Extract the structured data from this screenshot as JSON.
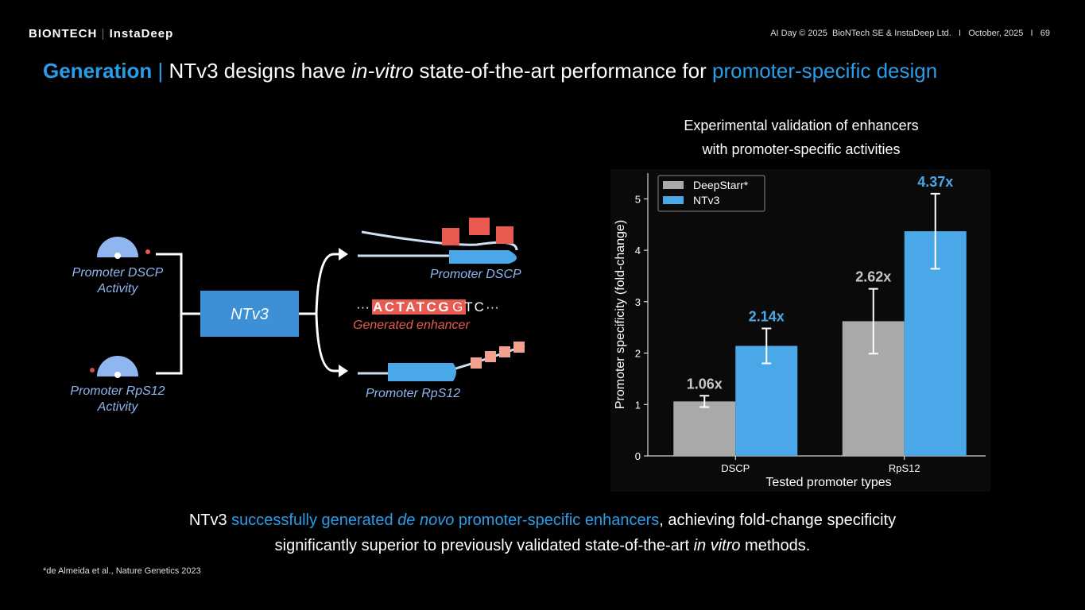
{
  "header": {
    "brand": "BIONTECH",
    "partner": "InstaDeep",
    "event": "AI Day © 2025  BioNTech SE & InstaDeep Ltd.",
    "separator": "I",
    "date": "October, 2025",
    "page": "69"
  },
  "title": {
    "section": "Generation",
    "text_1": "NTv3 designs have ",
    "emphasis": "in-vitro",
    "text_2": " state-of-the-art performance for ",
    "highlight": "promoter-specific design"
  },
  "diagram": {
    "input_1": "Promoter DSCP Activity",
    "input_2": "Promoter RpS12 Activity",
    "model": "NTv3",
    "output_1": "Promoter DSCP",
    "output_2": "Promoter RpS12",
    "sequence_prefix": "···",
    "sequence_highlight": "ACTATCG",
    "sequence_rest": "GTC",
    "sequence_suffix": "···",
    "sequence_label": "Generated enhancer"
  },
  "chart_data": {
    "type": "bar",
    "subtitle_1": "Experimental validation of enhancers",
    "subtitle_2": "with promoter-specific activities",
    "categories": [
      "DSCP",
      "RpS12"
    ],
    "series": [
      {
        "name": "DeepStarr*",
        "color": "#a9a9a9",
        "label_color": "#c8c8c8",
        "values": [
          1.06,
          2.62
        ],
        "value_labels": [
          "1.06x",
          "2.62x"
        ],
        "errors": [
          0.11,
          0.63
        ]
      },
      {
        "name": "NTv3",
        "color": "#4aa8e8",
        "label_color": "#4aa8e8",
        "values": [
          2.14,
          4.37
        ],
        "value_labels": [
          "2.14x",
          "4.37x"
        ],
        "errors": [
          0.34,
          0.73
        ]
      }
    ],
    "xlabel": "Tested promoter types",
    "ylabel": "Promoter specificity (fold-change)",
    "ylim": [
      0,
      5.5
    ],
    "yticks": [
      0,
      1,
      2,
      3,
      4,
      5
    ],
    "legend": "upper left"
  },
  "conclusion": {
    "p1": "NTv3 ",
    "p2": "successfully generated ",
    "p3": "de novo",
    "p4": " promoter-specific enhancers",
    "p5": ", achieving fold-change specificity",
    "p6": "significantly superior to previously validated state-of-the-art ",
    "p7": "in vitro",
    "p8": " methods."
  },
  "footnote": "*de Almeida et al., Nature Genetics 2023"
}
